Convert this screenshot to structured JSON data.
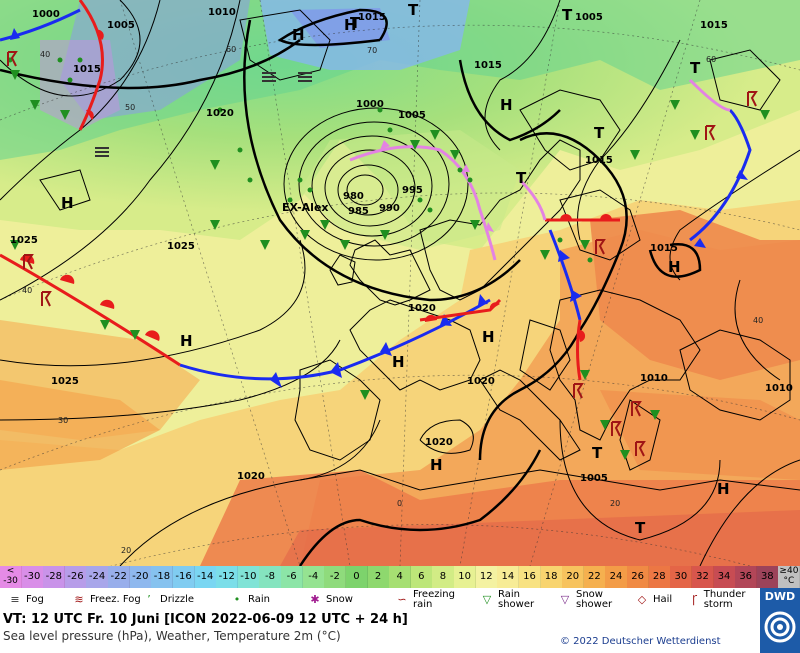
{
  "map": {
    "pressure_labels": [
      "1000",
      "1005",
      "1010",
      "1015",
      "1015",
      "1015",
      "1005",
      "1015",
      "1000",
      "1005",
      "980",
      "985",
      "990",
      "995",
      "1020",
      "1025",
      "1025",
      "1015",
      "1020",
      "1020",
      "1010",
      "1010",
      "1020",
      "1025",
      "1020",
      "1005",
      "1015"
    ],
    "temp_labels": [
      "60",
      "50",
      "70",
      "60",
      "40",
      "40",
      "30",
      "20",
      "0",
      "20",
      "40"
    ],
    "high_low": [
      "H",
      "H",
      "H",
      "H",
      "H",
      "H",
      "H",
      "H",
      "H",
      "H",
      "T",
      "T",
      "T",
      "T",
      "T",
      "T",
      "T",
      "T"
    ],
    "feature_name": "EX-Alex"
  },
  "scale": {
    "values": [
      "<\n-30",
      "-30",
      "-28",
      "-26",
      "-24",
      "-22",
      "-20",
      "-18",
      "-16",
      "-14",
      "-12",
      "-10",
      "-8",
      "-6",
      "-4",
      "-2",
      "0",
      "2",
      "4",
      "6",
      "8",
      "10",
      "12",
      "14",
      "16",
      "18",
      "20",
      "22",
      "24",
      "26",
      "28",
      "30",
      "32",
      "34",
      "36",
      "38",
      "≥40\n°C"
    ],
    "colors": [
      "#e58be6",
      "#d98ee8",
      "#c993e9",
      "#b79de9",
      "#a8a6ea",
      "#98aeeb",
      "#8eb8ee",
      "#86c2ef",
      "#80ccf1",
      "#7ad6f2",
      "#7bdee9",
      "#80e3d6",
      "#85e4bf",
      "#8ce5a7",
      "#95e391",
      "#8fdb7c",
      "#7dd36c",
      "#8ed86e",
      "#a6df72",
      "#bde679",
      "#d2ec85",
      "#e7f193",
      "#f4f2a2",
      "#f7ec96",
      "#f8e282",
      "#f8d46f",
      "#f7c35e",
      "#f5b04f",
      "#f39c47",
      "#f08a44",
      "#ec7744",
      "#e46547",
      "#d8564c",
      "#c74c53",
      "#b24658",
      "#9c435a",
      "#c0c0c0"
    ]
  },
  "legend": [
    {
      "icon": "fog-icon",
      "glyph": "≡",
      "label": "Fog"
    },
    {
      "icon": "freezing-fog-icon",
      "glyph": "≋",
      "label": "Freez. Fog"
    },
    {
      "icon": "drizzle-icon",
      "glyph": "’",
      "label": "Drizzle"
    },
    {
      "icon": "rain-icon",
      "glyph": "•",
      "label": "Rain"
    },
    {
      "icon": "snow-icon",
      "glyph": "✱",
      "label": "Snow"
    },
    {
      "icon": "freezing-rain-icon",
      "glyph": "∽",
      "label": "Freezing rain"
    },
    {
      "icon": "rain-shower-icon",
      "glyph": "▽",
      "label": "Rain shower"
    },
    {
      "icon": "snow-shower-icon",
      "glyph": "▽",
      "label": "Snow shower"
    },
    {
      "icon": "hail-icon",
      "glyph": "◇",
      "label": "Hail"
    },
    {
      "icon": "thunderstorm-icon",
      "glyph": "Ꞅ",
      "label": "Thunder storm"
    }
  ],
  "info": {
    "line1": "VT: 12 UTC Fr.  10 Juni [ICON 2022-06-09  12 UTC + 24 h]",
    "line2": "Sea level pressure (hPa), Weather, Temperature 2m (°C)",
    "copyright": "© 2022 Deutscher Wetterdienst",
    "logo": "DWD"
  }
}
